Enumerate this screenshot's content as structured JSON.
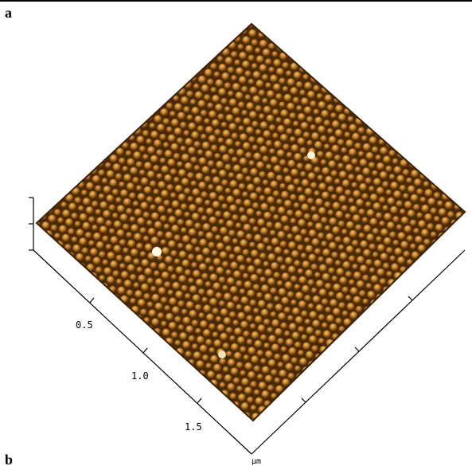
{
  "panels": [
    {
      "label": "a"
    },
    {
      "label": "b"
    }
  ],
  "axis": {
    "ticks": [
      "0.5",
      "1.0",
      "1.5"
    ],
    "unit": "μm"
  }
}
